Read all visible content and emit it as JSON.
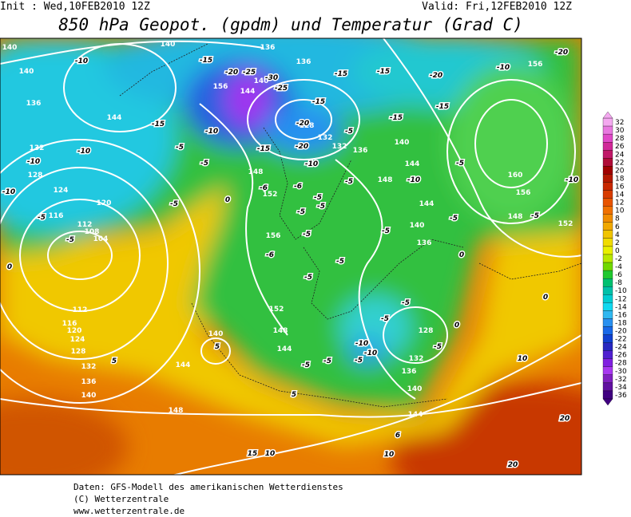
{
  "header": {
    "init": "Init : Wed,10FEB2010 12Z",
    "valid": "Valid: Fri,12FEB2010 12Z",
    "title": "850 hPa Geopot. (gpdm) und Temperatur (Grad C)"
  },
  "map": {
    "geopotential_labels": [
      140,
      140,
      136,
      136,
      156,
      140,
      136,
      144,
      156,
      140,
      144,
      128,
      132,
      132,
      136,
      140,
      144,
      132,
      128,
      124,
      120,
      116,
      112,
      108,
      104,
      148,
      152,
      148,
      144,
      140,
      136,
      156,
      152,
      148,
      144,
      140,
      160,
      156,
      148,
      152,
      128,
      132,
      136,
      140,
      144,
      112,
      116,
      120,
      124,
      128,
      132,
      136,
      140,
      144,
      148
    ],
    "temperature_labels": [
      -10,
      -15,
      -20,
      -25,
      -30,
      -25,
      -15,
      -15,
      -15,
      -20,
      -10,
      -20,
      -15,
      -15,
      -5,
      -20,
      -20,
      -15,
      -10,
      -15,
      -10,
      -5,
      -5,
      -10,
      -10,
      -10,
      -5,
      -10,
      -10,
      -5,
      -5,
      -6,
      -6,
      -5,
      -5,
      -5,
      -5,
      -6,
      -5,
      -5,
      -5,
      -5,
      -5,
      -5,
      -5,
      -10,
      -10,
      -5,
      -5,
      -5,
      0,
      0,
      0,
      0,
      0,
      5,
      5,
      10,
      5,
      6,
      10,
      20,
      20,
      15,
      10,
      -5,
      -5,
      -5
    ]
  },
  "colorbar": {
    "ticks": [
      32,
      30,
      28,
      26,
      24,
      22,
      20,
      18,
      16,
      14,
      12,
      10,
      8,
      6,
      4,
      2,
      0,
      -2,
      -4,
      -6,
      -8,
      -10,
      -12,
      -14,
      -16,
      -18,
      -20,
      -22,
      -24,
      -26,
      -28,
      -30,
      -32,
      -34,
      -36
    ],
    "colors": [
      "#f4a8f0",
      "#e878e0",
      "#e048c8",
      "#d02898",
      "#c01868",
      "#b00c38",
      "#a00000",
      "#b41800",
      "#c82800",
      "#d83c00",
      "#e85400",
      "#f07000",
      "#f08c00",
      "#f0a800",
      "#f0c400",
      "#f0dc00",
      "#e8f000",
      "#b8e800",
      "#70d800",
      "#20c830",
      "#00c070",
      "#00c0a8",
      "#00ccd0",
      "#10d8f0",
      "#30b8f0",
      "#2890f0",
      "#1868e8",
      "#1040d0",
      "#2828c0",
      "#5020d0",
      "#8020e0",
      "#a838f0",
      "#8020c0",
      "#6010a0",
      "#400080"
    ]
  },
  "footer": {
    "lines": [
      "Daten: GFS-Modell des amerikanischen Wetterdienstes",
      "(C) Wetterzentrale",
      "www.wetterzentrale.de"
    ]
  }
}
